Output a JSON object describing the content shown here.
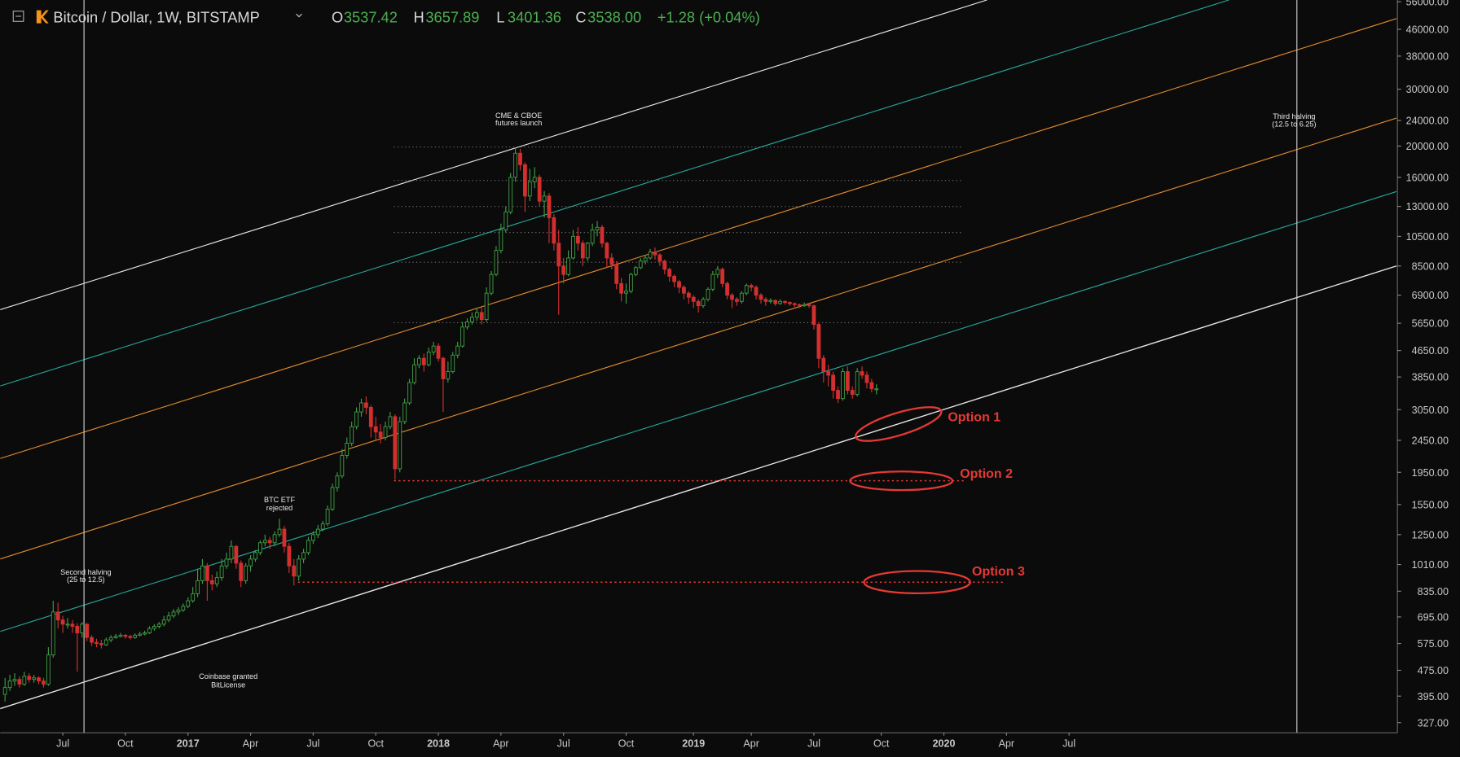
{
  "chart_data": {
    "type": "candlestick",
    "title": "Bitcoin / Dollar, 1W, BITSTAMP",
    "quote": [
      {
        "label": "O",
        "value": "3537.42"
      },
      {
        "label": "H",
        "value": "3657.89"
      },
      {
        "label": "L",
        "value": "3401.36"
      },
      {
        "label": "C",
        "value": "3538.00"
      }
    ],
    "change": "+1.28 (+0.04%)",
    "annotations": [
      {
        "lines": [
          "CME & CBOE",
          "futures launch"
        ]
      },
      {
        "lines": [
          "Third halving",
          "(12.5 to 6.25)"
        ]
      },
      {
        "lines": [
          "Second halving",
          "(25 to 12.5)"
        ]
      },
      {
        "lines": [
          "BTC ETF",
          "rejected"
        ]
      },
      {
        "lines": [
          "Coinbase granted",
          "BitLicense"
        ]
      },
      {
        "lines": [
          "Option 1"
        ]
      },
      {
        "lines": [
          "Option 2"
        ]
      },
      {
        "lines": [
          "Option 3"
        ]
      }
    ],
    "log_y": true,
    "grid": false,
    "up_color": "#3f9e45",
    "down_color": "#d32f2f",
    "xlim": [
      -1,
      289
    ],
    "xticks": [
      {
        "value": 12,
        "label": "Jul"
      },
      {
        "value": 25,
        "label": "Oct"
      },
      {
        "value": 38,
        "label": "2017"
      },
      {
        "value": 51,
        "label": "Apr"
      },
      {
        "value": 64,
        "label": "Jul"
      },
      {
        "value": 77,
        "label": "Oct"
      },
      {
        "value": 90,
        "label": "2018"
      },
      {
        "value": 103,
        "label": "Apr"
      },
      {
        "value": 116,
        "label": "Jul"
      },
      {
        "value": 129,
        "label": "Oct"
      },
      {
        "value": 143,
        "label": "2019"
      },
      {
        "value": 155,
        "label": "Apr"
      },
      {
        "value": 168,
        "label": "Jul"
      },
      {
        "value": 182,
        "label": "Oct"
      },
      {
        "value": 195,
        "label": "2020"
      },
      {
        "value": 208,
        "label": "Apr"
      },
      {
        "value": 221,
        "label": "Jul"
      }
    ],
    "ylim": [
      300,
      56700
    ],
    "yticks": [
      {
        "value": 327,
        "label": "327.00"
      },
      {
        "value": 395,
        "label": "395.00"
      },
      {
        "value": 475,
        "label": "475.00"
      },
      {
        "value": 575,
        "label": "575.00"
      },
      {
        "value": 695,
        "label": "695.00"
      },
      {
        "value": 835,
        "label": "835.00"
      },
      {
        "value": 1010,
        "label": "1010.00"
      },
      {
        "value": 1250,
        "label": "1250.00"
      },
      {
        "value": 1550,
        "label": "1550.00"
      },
      {
        "value": 1950,
        "label": "1950.00"
      },
      {
        "value": 2450,
        "label": "2450.00"
      },
      {
        "value": 3050,
        "label": "3050.00"
      },
      {
        "value": 3850,
        "label": "3850.00"
      },
      {
        "value": 4650,
        "label": "4650.00"
      },
      {
        "value": 5650,
        "label": "5650.00"
      },
      {
        "value": 6900,
        "label": "6900.00"
      },
      {
        "value": 8500,
        "label": "8500.00"
      },
      {
        "value": 10500,
        "label": "10500.00"
      },
      {
        "value": 13000,
        "label": "13000.00"
      },
      {
        "value": 16000,
        "label": "16000.00"
      },
      {
        "value": 20000,
        "label": "20000.00"
      },
      {
        "value": 24000,
        "label": "24000.00"
      },
      {
        "value": 30000,
        "label": "30000.00"
      },
      {
        "value": 38000,
        "label": "38000.00"
      },
      {
        "value": 46000,
        "label": "46000.00"
      },
      {
        "value": 56000,
        "label": "56000.00"
      }
    ],
    "x": [
      0,
      1,
      2,
      3,
      4,
      5,
      6,
      7,
      8,
      9,
      10,
      11,
      12,
      13,
      14,
      15,
      16,
      17,
      18,
      19,
      20,
      21,
      22,
      23,
      24,
      25,
      26,
      27,
      28,
      29,
      30,
      31,
      32,
      33,
      34,
      35,
      36,
      37,
      38,
      39,
      40,
      41,
      42,
      43,
      44,
      45,
      46,
      47,
      48,
      49,
      50,
      51,
      52,
      53,
      54,
      55,
      56,
      57,
      58,
      59,
      60,
      61,
      62,
      63,
      64,
      65,
      66,
      67,
      68,
      69,
      70,
      71,
      72,
      73,
      74,
      75,
      76,
      77,
      78,
      79,
      80,
      81,
      82,
      83,
      84,
      85,
      86,
      87,
      88,
      89,
      90,
      91,
      92,
      93,
      94,
      95,
      96,
      97,
      98,
      99,
      100,
      101,
      102,
      103,
      104,
      105,
      106,
      107,
      108,
      109,
      110,
      111,
      112,
      113,
      114,
      115,
      116,
      117,
      118,
      119,
      120,
      121,
      122,
      123,
      124,
      125,
      126,
      127,
      128,
      129,
      130,
      131,
      132,
      133,
      134,
      135,
      136,
      137,
      138,
      139,
      140,
      141,
      142,
      143,
      144,
      145,
      146,
      147,
      148,
      149,
      150,
      151,
      152,
      153,
      154,
      155,
      156,
      157,
      158,
      159,
      160,
      161,
      162,
      163,
      164,
      165,
      166,
      167,
      168,
      169,
      170,
      171,
      172,
      173,
      174,
      175,
      176,
      177,
      178,
      179,
      180,
      181
    ],
    "open": [
      400,
      420,
      440,
      445,
      430,
      455,
      445,
      450,
      440,
      430,
      530,
      720,
      680,
      660,
      660,
      650,
      620,
      660,
      600,
      580,
      575,
      570,
      590,
      600,
      605,
      610,
      605,
      600,
      610,
      615,
      620,
      640,
      650,
      660,
      680,
      700,
      720,
      730,
      750,
      780,
      820,
      900,
      1000,
      900,
      880,
      920,
      1000,
      1050,
      1150,
      1020,
      900,
      1000,
      1050,
      1100,
      1180,
      1200,
      1180,
      1250,
      1300,
      1150,
      1000,
      930,
      1050,
      1100,
      1200,
      1250,
      1300,
      1350,
      1500,
      1750,
      1900,
      2200,
      2400,
      2700,
      3000,
      3200,
      3100,
      2700,
      2600,
      2500,
      2700,
      2900,
      2000,
      2800,
      3200,
      3700,
      4200,
      4400,
      4200,
      4600,
      4800,
      4400,
      3800,
      4000,
      4500,
      4800,
      5500,
      5700,
      5900,
      6100,
      5800,
      7000,
      8000,
      9500,
      11000,
      12500,
      16000,
      19000,
      17500,
      14000,
      15500,
      16000,
      13500,
      14000,
      12000,
      10000,
      8500,
      8000,
      9000,
      10500,
      10000,
      9000,
      10000,
      11000,
      11200,
      10000,
      9000,
      8600,
      7500,
      7000,
      7100,
      8000,
      8400,
      8800,
      9000,
      9400,
      9200,
      8800,
      8300,
      7900,
      7600,
      7300,
      7000,
      6800,
      6600,
      6400,
      6700,
      7200,
      8000,
      8300,
      7500,
      6900,
      6700,
      6600,
      7000,
      7400,
      7300,
      6900,
      6700,
      6600,
      6650,
      6500,
      6600,
      6550,
      6500,
      6450,
      6400,
      6450,
      6400,
      5600,
      4400,
      4000,
      3900,
      3500,
      3300,
      4000,
      3500,
      3400,
      4000,
      3900,
      3700,
      3537.42
    ],
    "close": [
      420,
      440,
      445,
      430,
      455,
      445,
      450,
      440,
      430,
      530,
      720,
      680,
      660,
      660,
      650,
      620,
      660,
      600,
      580,
      575,
      570,
      590,
      600,
      605,
      610,
      605,
      600,
      610,
      615,
      620,
      640,
      650,
      660,
      680,
      700,
      720,
      730,
      750,
      780,
      820,
      900,
      1000,
      900,
      880,
      920,
      1000,
      1050,
      1150,
      1020,
      900,
      1000,
      1050,
      1100,
      1180,
      1200,
      1180,
      1250,
      1300,
      1150,
      1000,
      930,
      1050,
      1100,
      1200,
      1250,
      1300,
      1350,
      1500,
      1750,
      1900,
      2200,
      2400,
      2700,
      3000,
      3200,
      3100,
      2700,
      2600,
      2500,
      2700,
      2900,
      2000,
      2800,
      3200,
      3700,
      4200,
      4400,
      4200,
      4600,
      4800,
      4400,
      3800,
      4000,
      4500,
      4800,
      5500,
      5700,
      5900,
      6100,
      5800,
      7000,
      8000,
      9500,
      11000,
      12500,
      16000,
      19000,
      17500,
      14000,
      15500,
      16000,
      13500,
      14000,
      12000,
      10000,
      8500,
      8000,
      9000,
      10500,
      10000,
      9000,
      10000,
      11000,
      11200,
      10000,
      9000,
      8600,
      7500,
      7000,
      7100,
      8000,
      8400,
      8800,
      9000,
      9400,
      9200,
      8800,
      8300,
      7900,
      7600,
      7300,
      7000,
      6800,
      6600,
      6400,
      6700,
      7200,
      8000,
      8300,
      7500,
      6900,
      6700,
      6600,
      7000,
      7400,
      7300,
      6900,
      6700,
      6600,
      6650,
      6500,
      6600,
      6550,
      6500,
      6450,
      6400,
      6450,
      6400,
      5600,
      4400,
      4000,
      3900,
      3500,
      3300,
      4000,
      3500,
      3400,
      4000,
      3900,
      3700,
      3540,
      3538
    ],
    "high": [
      450,
      460,
      465,
      455,
      470,
      465,
      460,
      455,
      450,
      560,
      780,
      770,
      700,
      690,
      680,
      665,
      670,
      665,
      610,
      595,
      590,
      600,
      610,
      615,
      620,
      615,
      612,
      618,
      625,
      630,
      650,
      660,
      670,
      700,
      720,
      735,
      745,
      765,
      800,
      860,
      980,
      1050,
      1020,
      940,
      960,
      1050,
      1100,
      1200,
      1160,
      1040,
      1020,
      1080,
      1120,
      1200,
      1250,
      1230,
      1280,
      1400,
      1330,
      1180,
      1050,
      1080,
      1130,
      1230,
      1280,
      1340,
      1380,
      1540,
      1800,
      1950,
      2300,
      2500,
      2800,
      3100,
      3300,
      3350,
      3150,
      2900,
      2750,
      2800,
      3000,
      2950,
      2900,
      3300,
      3800,
      4400,
      4500,
      4550,
      4750,
      4950,
      4900,
      4450,
      4300,
      4600,
      4950,
      5700,
      5850,
      6100,
      6300,
      6400,
      7300,
      8200,
      9800,
      11500,
      13000,
      16500,
      19800,
      19600,
      17800,
      17000,
      17200,
      16300,
      14500,
      14300,
      12300,
      11000,
      9000,
      9500,
      11000,
      11200,
      10200,
      10100,
      11500,
      11700,
      11400,
      10100,
      9300,
      8800,
      7800,
      7500,
      8100,
      8500,
      9000,
      9200,
      9600,
      9700,
      9300,
      8900,
      8400,
      8000,
      7700,
      7400,
      7100,
      6900,
      6700,
      6800,
      7300,
      8200,
      8500,
      8400,
      7600,
      7000,
      6800,
      7100,
      7500,
      7500,
      7400,
      7000,
      6800,
      6750,
      6700,
      6700,
      6650,
      6600,
      6550,
      6500,
      6550,
      6500,
      6450,
      5700,
      4500,
      4200,
      4000,
      3600,
      4100,
      4150,
      3600,
      4100,
      4150,
      4000,
      3800,
      3657.89
    ],
    "low": [
      380,
      410,
      425,
      420,
      425,
      435,
      435,
      430,
      420,
      425,
      520,
      640,
      620,
      640,
      620,
      470,
      600,
      585,
      565,
      560,
      555,
      565,
      580,
      595,
      600,
      595,
      592,
      595,
      605,
      610,
      615,
      630,
      640,
      650,
      670,
      690,
      705,
      720,
      740,
      770,
      800,
      880,
      780,
      840,
      860,
      900,
      980,
      1020,
      980,
      860,
      880,
      960,
      1030,
      1080,
      1150,
      1130,
      1150,
      1230,
      1100,
      950,
      870,
      900,
      1020,
      1080,
      1170,
      1220,
      1280,
      1330,
      1480,
      1700,
      1870,
      2150,
      2350,
      2650,
      2900,
      2950,
      2500,
      2450,
      2400,
      2450,
      2650,
      1850,
      1950,
      2750,
      3150,
      3650,
      4100,
      4000,
      4150,
      4500,
      4300,
      3000,
      3700,
      3950,
      4400,
      4750,
      5400,
      5600,
      5750,
      5600,
      5700,
      6900,
      7900,
      9300,
      10800,
      12300,
      15500,
      16800,
      12500,
      13500,
      14800,
      13000,
      12000,
      10000,
      9500,
      6000,
      7500,
      7900,
      8900,
      9500,
      8500,
      8800,
      9800,
      10500,
      9700,
      8400,
      8300,
      7200,
      6600,
      6500,
      7000,
      7900,
      8300,
      8600,
      8900,
      8900,
      8500,
      8000,
      7600,
      7300,
      7000,
      6700,
      6500,
      6300,
      6100,
      6300,
      6600,
      7100,
      7800,
      7300,
      6700,
      6300,
      6400,
      6500,
      6900,
      7100,
      6700,
      6500,
      6400,
      6500,
      6400,
      6450,
      6450,
      6400,
      6350,
      6300,
      6350,
      6300,
      5400,
      4100,
      3700,
      3600,
      3300,
      3200,
      3250,
      3400,
      3300,
      3350,
      3800,
      3550,
      3450,
      3401.36
    ]
  }
}
